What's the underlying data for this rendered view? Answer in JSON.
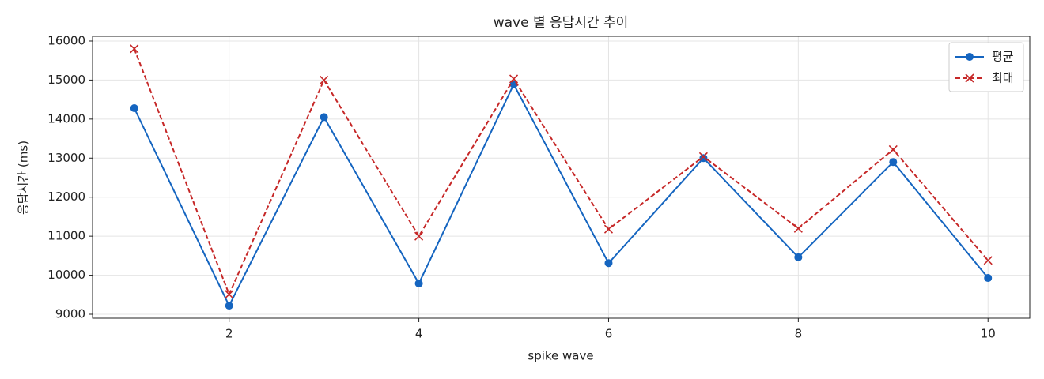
{
  "chart_data": {
    "type": "line",
    "title": "wave 별 응답시간 추이",
    "xlabel": "spike wave",
    "ylabel": "응답시간 (ms)",
    "x": [
      1,
      2,
      3,
      4,
      5,
      6,
      7,
      8,
      9,
      10
    ],
    "series": [
      {
        "name": "평균",
        "color": "#1565c0",
        "marker": "o",
        "linestyle": "solid",
        "values": [
          14280,
          9220,
          14050,
          9790,
          14890,
          10310,
          13000,
          10460,
          12900,
          9930
        ]
      },
      {
        "name": "최대",
        "color": "#c62828",
        "marker": "x",
        "linestyle": "dashed",
        "values": [
          15800,
          9510,
          15000,
          11000,
          15030,
          11180,
          13040,
          11200,
          13220,
          10380
        ]
      }
    ],
    "xlim": [
      0.56,
      10.44
    ],
    "ylim": [
      8899,
      16121
    ],
    "xticks": [
      2,
      4,
      6,
      8,
      10
    ],
    "yticks": [
      9000,
      10000,
      11000,
      12000,
      13000,
      14000,
      15000,
      16000
    ],
    "grid": true,
    "legend": "upper right"
  }
}
